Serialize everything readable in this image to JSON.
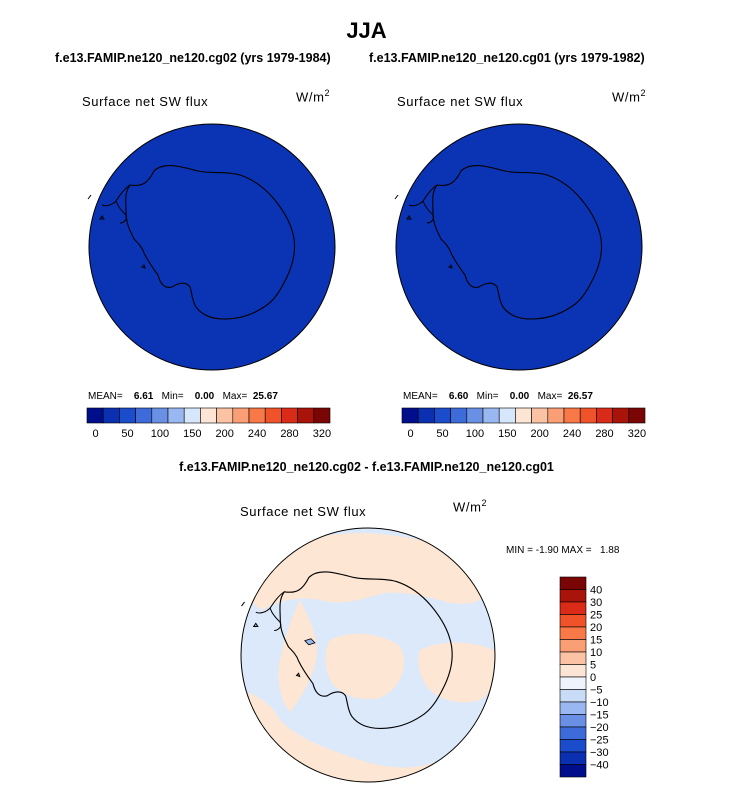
{
  "title": "JJA",
  "panels": [
    {
      "case": "f.e13.FAMIP.ne120_ne120.cg02 (yrs 1979-1984)",
      "variable": "Surface net SW flux",
      "units_base": "W/m",
      "units_exp": "2",
      "mean_label": "MEAN=",
      "mean": "6.61",
      "min_label": "Min=",
      "min": "0.00",
      "max_label": "Max=",
      "max": "25.67",
      "fill_color": "#0b34b5"
    },
    {
      "case": "f.e13.FAMIP.ne120_ne120.cg01 (yrs 1979-1982)",
      "variable": "Surface net SW flux",
      "units_base": "W/m",
      "units_exp": "2",
      "mean_label": "MEAN=",
      "mean": "6.60",
      "min_label": "Min=",
      "min": "0.00",
      "max_label": "Max=",
      "max": "26.57",
      "fill_color": "#0b34b5"
    }
  ],
  "abs_colorbar": {
    "colors": [
      "#000e8c",
      "#0a2fb0",
      "#1b4ccb",
      "#3d6bd9",
      "#6a90e6",
      "#99b8f1",
      "#d6e7fb",
      "#fce5d5",
      "#fbc3a3",
      "#f99e75",
      "#f87847",
      "#f0532a",
      "#d92b17",
      "#a81409",
      "#7a0505"
    ],
    "tick_labels": [
      "0",
      "50",
      "100",
      "150",
      "200",
      "240",
      "280",
      "320"
    ]
  },
  "difference": {
    "title": "f.e13.FAMIP.ne120_ne120.cg02 - f.e13.FAMIP.ne120_ne120.cg01",
    "variable": "Surface net SW flux",
    "units_base": "W/m",
    "units_exp": "2",
    "min_label": "MIN =",
    "min": "-1.90",
    "max_label": "MAX =",
    "max": "1.88",
    "positive_color": "#fde6d3",
    "negative_color": "#dbe9fb"
  },
  "diff_colorbar": {
    "colors": [
      "#7a0505",
      "#a81409",
      "#d92b17",
      "#f0532a",
      "#f87847",
      "#f99e75",
      "#fbc3a3",
      "#fce5d5",
      "#eef3fc",
      "#c9dcf7",
      "#99b8f1",
      "#6a90e6",
      "#3d6bd9",
      "#1b4ccb",
      "#0a2fb0",
      "#000e8c"
    ],
    "tick_labels": [
      "40",
      "30",
      "25",
      "20",
      "15",
      "10",
      "5",
      "0",
      "−5",
      "−10",
      "−15",
      "−20",
      "−25",
      "−30",
      "−40"
    ]
  }
}
